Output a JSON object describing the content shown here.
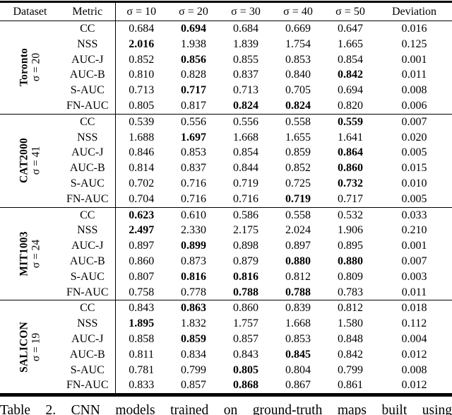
{
  "table": {
    "header": {
      "dataset": "Dataset",
      "metric": "Metric",
      "sigmas": [
        "σ = 10",
        "σ = 20",
        "σ = 30",
        "σ = 40",
        "σ = 50"
      ],
      "deviation": "Deviation"
    },
    "groups": [
      {
        "dataset": "Toronto",
        "sigma": "σ = 20",
        "rows": [
          {
            "metric": "CC",
            "values": [
              "0.684",
              "0.694",
              "0.684",
              "0.669",
              "0.647"
            ],
            "bold": [
              1
            ],
            "deviation": "0.016"
          },
          {
            "metric": "NSS",
            "values": [
              "2.016",
              "1.938",
              "1.839",
              "1.754",
              "1.665"
            ],
            "bold": [
              0
            ],
            "deviation": "0.125"
          },
          {
            "metric": "AUC-J",
            "values": [
              "0.852",
              "0.856",
              "0.855",
              "0.853",
              "0.854"
            ],
            "bold": [
              1
            ],
            "deviation": "0.001"
          },
          {
            "metric": "AUC-B",
            "values": [
              "0.810",
              "0.828",
              "0.837",
              "0.840",
              "0.842"
            ],
            "bold": [
              4
            ],
            "deviation": "0.011"
          },
          {
            "metric": "S-AUC",
            "values": [
              "0.713",
              "0.717",
              "0.713",
              "0.705",
              "0.694"
            ],
            "bold": [
              1
            ],
            "deviation": "0.008"
          },
          {
            "metric": "FN-AUC",
            "values": [
              "0.805",
              "0.817",
              "0.824",
              "0.824",
              "0.820"
            ],
            "bold": [
              2,
              3
            ],
            "deviation": "0.006"
          }
        ]
      },
      {
        "dataset": "CAT2000",
        "sigma": "σ = 41",
        "rows": [
          {
            "metric": "CC",
            "values": [
              "0.539",
              "0.556",
              "0.556",
              "0.558",
              "0.559"
            ],
            "bold": [
              4
            ],
            "deviation": "0.007"
          },
          {
            "metric": "NSS",
            "values": [
              "1.688",
              "1.697",
              "1.668",
              "1.655",
              "1.641"
            ],
            "bold": [
              1
            ],
            "deviation": "0.020"
          },
          {
            "metric": "AUC-J",
            "values": [
              "0.846",
              "0.853",
              "0.854",
              "0.859",
              "0.864"
            ],
            "bold": [
              4
            ],
            "deviation": "0.005"
          },
          {
            "metric": "AUC-B",
            "values": [
              "0.814",
              "0.837",
              "0.844",
              "0.852",
              "0.860"
            ],
            "bold": [
              4
            ],
            "deviation": "0.015"
          },
          {
            "metric": "S-AUC",
            "values": [
              "0.702",
              "0.716",
              "0.719",
              "0.725",
              "0.732"
            ],
            "bold": [
              4
            ],
            "deviation": "0.010"
          },
          {
            "metric": "FN-AUC",
            "values": [
              "0.704",
              "0.716",
              "0.716",
              "0.719",
              "0.717"
            ],
            "bold": [
              3
            ],
            "deviation": "0.005"
          }
        ]
      },
      {
        "dataset": "MIT1003",
        "sigma": "σ = 24",
        "rows": [
          {
            "metric": "CC",
            "values": [
              "0.623",
              "0.610",
              "0.586",
              "0.558",
              "0.532"
            ],
            "bold": [
              0
            ],
            "deviation": "0.033"
          },
          {
            "metric": "NSS",
            "values": [
              "2.497",
              "2.330",
              "2.175",
              "2.024",
              "1.906"
            ],
            "bold": [
              0
            ],
            "deviation": "0.210"
          },
          {
            "metric": "AUC-J",
            "values": [
              "0.897",
              "0.899",
              "0.898",
              "0.897",
              "0.895"
            ],
            "bold": [
              1
            ],
            "deviation": "0.001"
          },
          {
            "metric": "AUC-B",
            "values": [
              "0.860",
              "0.873",
              "0.879",
              "0.880",
              "0.880"
            ],
            "bold": [
              3,
              4
            ],
            "deviation": "0.007"
          },
          {
            "metric": "S-AUC",
            "values": [
              "0.807",
              "0.816",
              "0.816",
              "0.812",
              "0.809"
            ],
            "bold": [
              1,
              2
            ],
            "deviation": "0.003"
          },
          {
            "metric": "FN-AUC",
            "values": [
              "0.758",
              "0.778",
              "0.788",
              "0.788",
              "0.783"
            ],
            "bold": [
              2,
              3
            ],
            "deviation": "0.011"
          }
        ]
      },
      {
        "dataset": "SALICON",
        "sigma": "σ = 19",
        "rows": [
          {
            "metric": "CC",
            "values": [
              "0.843",
              "0.863",
              "0.860",
              "0.839",
              "0.812"
            ],
            "bold": [
              1
            ],
            "deviation": "0.018"
          },
          {
            "metric": "NSS",
            "values": [
              "1.895",
              "1.832",
              "1.757",
              "1.668",
              "1.580"
            ],
            "bold": [
              0
            ],
            "deviation": "0.112"
          },
          {
            "metric": "AUC-J",
            "values": [
              "0.858",
              "0.859",
              "0.857",
              "0.853",
              "0.848"
            ],
            "bold": [
              1
            ],
            "deviation": "0.004"
          },
          {
            "metric": "AUC-B",
            "values": [
              "0.811",
              "0.834",
              "0.843",
              "0.845",
              "0.842"
            ],
            "bold": [
              3
            ],
            "deviation": "0.012"
          },
          {
            "metric": "S-AUC",
            "values": [
              "0.781",
              "0.799",
              "0.805",
              "0.804",
              "0.799"
            ],
            "bold": [
              2
            ],
            "deviation": "0.008"
          },
          {
            "metric": "FN-AUC",
            "values": [
              "0.833",
              "0.857",
              "0.868",
              "0.867",
              "0.861"
            ],
            "bold": [
              2
            ],
            "deviation": "0.012"
          }
        ]
      }
    ]
  },
  "caption": "Table 2. CNN models trained on ground-truth maps built using"
}
